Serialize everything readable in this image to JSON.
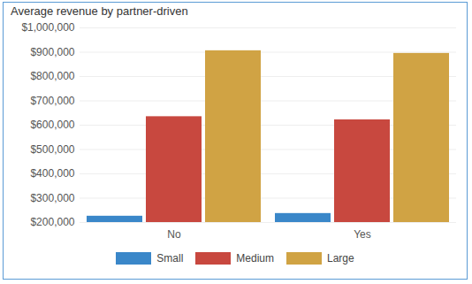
{
  "chart_data": {
    "type": "bar",
    "title": "Average revenue by partner-driven",
    "categories": [
      "No",
      "Yes"
    ],
    "series": [
      {
        "name": "Small",
        "color": "#3a87c9",
        "values": [
          226000,
          237000
        ]
      },
      {
        "name": "Medium",
        "color": "#c8483f",
        "values": [
          635000,
          622000
        ]
      },
      {
        "name": "Large",
        "color": "#d0a344",
        "values": [
          906000,
          895000
        ]
      }
    ],
    "ylim": [
      200000,
      1000000
    ],
    "yticks": [
      {
        "value": 200000,
        "label": "$200,000"
      },
      {
        "value": 300000,
        "label": "$300,000"
      },
      {
        "value": 400000,
        "label": "$400,000"
      },
      {
        "value": 500000,
        "label": "$500,000"
      },
      {
        "value": 600000,
        "label": "$600,000"
      },
      {
        "value": 700000,
        "label": "$700,000"
      },
      {
        "value": 800000,
        "label": "$800,000"
      },
      {
        "value": 900000,
        "label": "$900,000"
      },
      {
        "value": 1000000,
        "label": "$1,000,000"
      }
    ],
    "grid": true,
    "legend": "bottom"
  }
}
